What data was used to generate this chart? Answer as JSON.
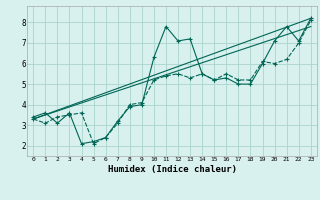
{
  "xlabel": "Humidex (Indice chaleur)",
  "bg_color": "#d8f0ee",
  "grid_color": "#aad4cc",
  "line_color": "#006655",
  "xlim": [
    -0.5,
    23.5
  ],
  "ylim": [
    1.5,
    8.8
  ],
  "xticks": [
    0,
    1,
    2,
    3,
    4,
    5,
    6,
    7,
    8,
    9,
    10,
    11,
    12,
    13,
    14,
    15,
    16,
    17,
    18,
    19,
    20,
    21,
    22,
    23
  ],
  "yticks": [
    2,
    3,
    4,
    5,
    6,
    7,
    8
  ],
  "line1_x": [
    0,
    1,
    2,
    3,
    4,
    5,
    6,
    7,
    8,
    9,
    10,
    11,
    12,
    13,
    14,
    15,
    16,
    17,
    18,
    19,
    20,
    21,
    22,
    23
  ],
  "line1_y": [
    3.4,
    3.6,
    3.1,
    3.6,
    2.1,
    2.2,
    2.4,
    3.2,
    3.9,
    4.0,
    6.3,
    7.8,
    7.1,
    7.2,
    5.5,
    5.2,
    5.3,
    5.0,
    5.0,
    6.0,
    7.1,
    7.8,
    7.1,
    8.2
  ],
  "line2_x": [
    0,
    1,
    2,
    3,
    4,
    5,
    6,
    7,
    8,
    9,
    10,
    11,
    12,
    13,
    14,
    15,
    16,
    17,
    18,
    19,
    20,
    21,
    22,
    23
  ],
  "line2_y": [
    3.3,
    3.1,
    3.4,
    3.5,
    3.6,
    2.1,
    2.4,
    3.1,
    4.0,
    4.1,
    5.2,
    5.4,
    5.5,
    5.3,
    5.5,
    5.2,
    5.5,
    5.2,
    5.2,
    6.1,
    6.0,
    6.2,
    7.0,
    8.1
  ],
  "line3_x": [
    0,
    23
  ],
  "line3_y": [
    3.3,
    8.2
  ],
  "line4_x": [
    0,
    23
  ],
  "line4_y": [
    3.3,
    7.8
  ]
}
